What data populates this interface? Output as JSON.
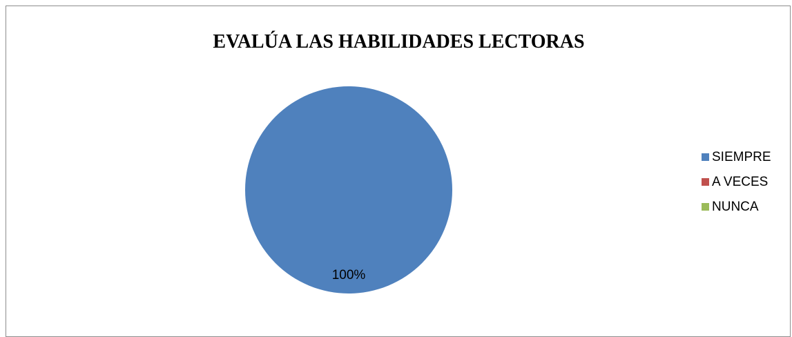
{
  "chart_data": {
    "type": "pie",
    "title": "EVALÚA LAS HABILIDADES LECTORAS",
    "categories": [
      "SIEMPRE",
      "A VECES",
      "NUNCA"
    ],
    "values": [
      100,
      0,
      0
    ],
    "data_labels": [
      "100%",
      "",
      ""
    ],
    "colors": [
      "#4F81BD",
      "#C0504D",
      "#9BBB59"
    ],
    "legend_position": "right",
    "grid": false
  }
}
